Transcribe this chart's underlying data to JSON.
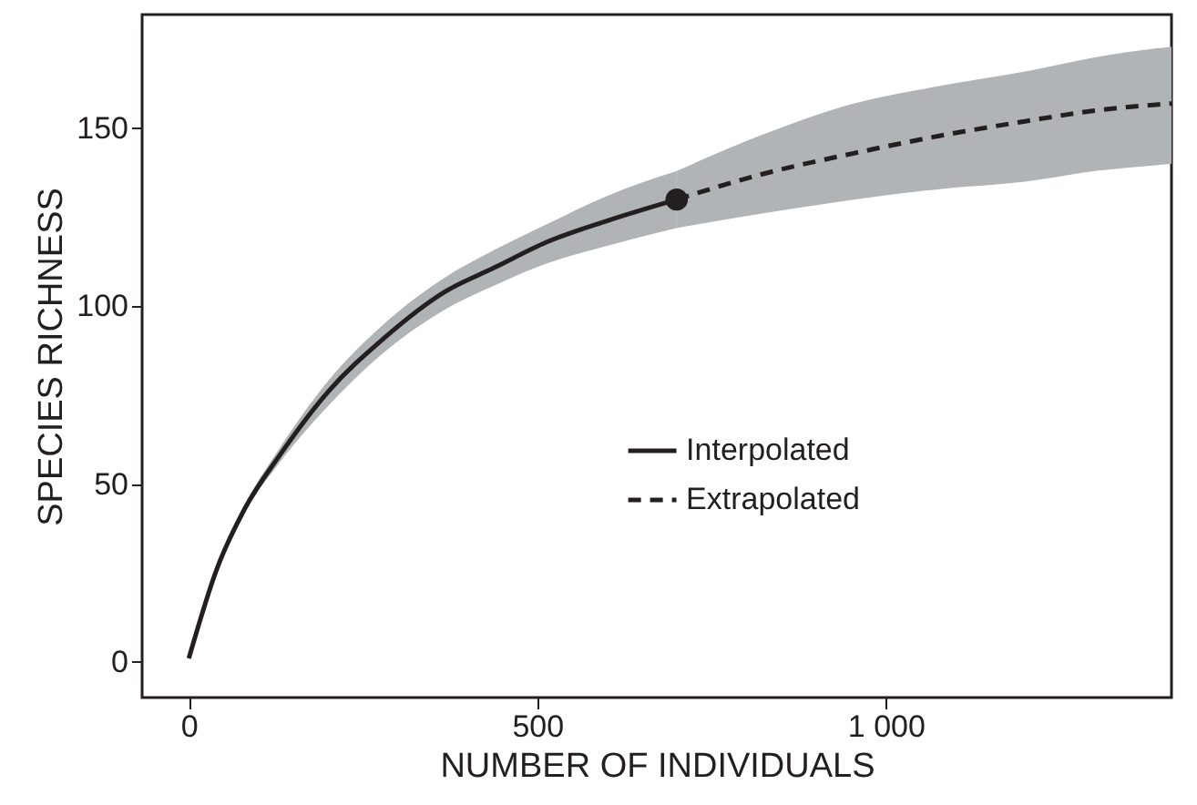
{
  "chart_data": {
    "type": "line",
    "xlabel": "NUMBER OF INDIVIDUALS",
    "ylabel": "SPECIES RICHNESS",
    "xlim": [
      -67,
      1410
    ],
    "ylim": [
      -10,
      182
    ],
    "xticks": [
      0,
      500,
      {
        "value": 1000,
        "label": "1 000"
      }
    ],
    "yticks": [
      0,
      50,
      100,
      150
    ],
    "grid": false,
    "legend": "bottom right",
    "marker": "none",
    "series": [
      {
        "name": "Interpolated",
        "color": "#231f20",
        "line_style": "solid",
        "x": [
          0,
          40,
          80,
          130,
          200,
          280,
          367,
          440,
          513,
          600,
          700
        ],
        "values": [
          1,
          26,
          43,
          58,
          76,
          91,
          104,
          111,
          118,
          124,
          130
        ],
        "lower": [
          1,
          26,
          42,
          56,
          72,
          87,
          99,
          106,
          112,
          117,
          122
        ],
        "upper": [
          1,
          26,
          44,
          60,
          79,
          95,
          108,
          116,
          123,
          131,
          138
        ]
      },
      {
        "name": "Extrapolated",
        "color": "#231f20",
        "line_style": "dashed",
        "x": [
          700,
          820,
          954,
          1080,
          1200,
          1300,
          1410
        ],
        "values": [
          130,
          137,
          143,
          148,
          152,
          155,
          157
        ],
        "lower": [
          122,
          126,
          130,
          133,
          135,
          138,
          140
        ],
        "upper": [
          138,
          148,
          157,
          162,
          166,
          170,
          173
        ]
      },
      {
        "type": "scatter",
        "color": "#231f20",
        "marker": "circle",
        "x": [
          700
        ],
        "values": [
          130
        ]
      }
    ]
  }
}
